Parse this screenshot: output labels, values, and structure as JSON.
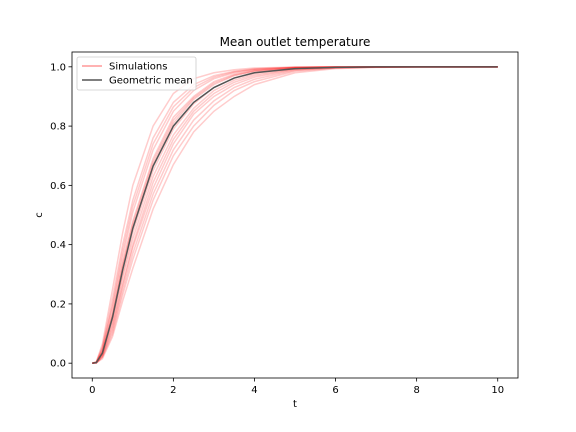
{
  "chart_data": {
    "type": "line",
    "title": "Mean outlet temperature",
    "xlabel": "t",
    "ylabel": "c",
    "xlim": [
      -0.5,
      10.5
    ],
    "ylim": [
      -0.05,
      1.05
    ],
    "xticks": [
      0,
      2,
      4,
      6,
      8,
      10
    ],
    "yticks": [
      0.0,
      0.2,
      0.4,
      0.6,
      0.8,
      1.0
    ],
    "xtick_labels": [
      "0",
      "2",
      "4",
      "6",
      "8",
      "10"
    ],
    "ytick_labels": [
      "0.0",
      "0.2",
      "0.4",
      "0.6",
      "0.8",
      "1.0"
    ],
    "legend": {
      "position": "upper-left",
      "entries": [
        {
          "label": "Simulations",
          "color": "#ff9999"
        },
        {
          "label": "Geometric mean",
          "color": "#555555"
        }
      ]
    },
    "x": [
      0,
      0.1,
      0.25,
      0.5,
      0.75,
      1,
      1.5,
      2,
      2.5,
      3,
      3.5,
      4,
      5,
      6,
      7,
      8,
      9,
      10
    ],
    "series": [
      {
        "values": [
          0,
          0.002,
          0.035,
          0.16,
          0.32,
          0.46,
          0.67,
          0.81,
          0.89,
          0.94,
          0.97,
          0.985,
          0.996,
          0.999,
          1.0,
          1.0,
          1.0,
          1.0
        ],
        "color": "#ff0000"
      },
      {
        "values": [
          0,
          0.002,
          0.03,
          0.14,
          0.29,
          0.42,
          0.63,
          0.77,
          0.86,
          0.92,
          0.955,
          0.975,
          0.993,
          0.998,
          1.0,
          1.0,
          1.0,
          1.0
        ],
        "color": "#ff0000"
      },
      {
        "values": [
          0,
          0.001,
          0.025,
          0.12,
          0.26,
          0.39,
          0.59,
          0.74,
          0.84,
          0.9,
          0.94,
          0.965,
          0.99,
          0.997,
          0.999,
          1.0,
          1.0,
          1.0
        ],
        "color": "#ff0000"
      },
      {
        "values": [
          0,
          0.001,
          0.02,
          0.1,
          0.23,
          0.35,
          0.55,
          0.7,
          0.8,
          0.87,
          0.92,
          0.95,
          0.985,
          0.996,
          0.999,
          1.0,
          1.0,
          1.0
        ],
        "color": "#ff0000"
      },
      {
        "values": [
          0,
          0.001,
          0.015,
          0.09,
          0.21,
          0.32,
          0.52,
          0.67,
          0.78,
          0.85,
          0.9,
          0.94,
          0.98,
          0.994,
          0.998,
          1.0,
          1.0,
          1.0
        ],
        "color": "#ff0000"
      },
      {
        "values": [
          0,
          0.003,
          0.045,
          0.19,
          0.36,
          0.51,
          0.72,
          0.85,
          0.92,
          0.96,
          0.98,
          0.99,
          0.998,
          1.0,
          1.0,
          1.0,
          1.0,
          1.0
        ],
        "color": "#ff0000"
      },
      {
        "values": [
          0,
          0.004,
          0.055,
          0.22,
          0.4,
          0.55,
          0.76,
          0.88,
          0.94,
          0.97,
          0.985,
          0.993,
          0.999,
          1.0,
          1.0,
          1.0,
          1.0,
          1.0
        ],
        "color": "#ff0000"
      },
      {
        "values": [
          0,
          0.005,
          0.065,
          0.25,
          0.44,
          0.6,
          0.8,
          0.91,
          0.96,
          0.98,
          0.99,
          0.996,
          0.999,
          1.0,
          1.0,
          1.0,
          1.0,
          1.0
        ],
        "color": "#ff0000"
      },
      {
        "values": [
          0,
          0.002,
          0.04,
          0.17,
          0.34,
          0.48,
          0.69,
          0.83,
          0.9,
          0.95,
          0.975,
          0.988,
          0.997,
          0.999,
          1.0,
          1.0,
          1.0,
          1.0
        ],
        "color": "#ff0000"
      },
      {
        "values": [
          0,
          0.002,
          0.033,
          0.15,
          0.3,
          0.44,
          0.65,
          0.79,
          0.875,
          0.93,
          0.962,
          0.98,
          0.995,
          0.999,
          1.0,
          1.0,
          1.0,
          1.0
        ],
        "color": "#ff0000"
      },
      {
        "values": [
          0,
          0.001,
          0.028,
          0.13,
          0.27,
          0.4,
          0.61,
          0.755,
          0.85,
          0.91,
          0.948,
          0.97,
          0.992,
          0.998,
          0.999,
          1.0,
          1.0,
          1.0
        ],
        "color": "#ff0000"
      },
      {
        "values": [
          0,
          0.003,
          0.05,
          0.2,
          0.38,
          0.53,
          0.74,
          0.865,
          0.93,
          0.965,
          0.983,
          0.992,
          0.998,
          1.0,
          1.0,
          1.0,
          1.0,
          1.0
        ],
        "color": "#ff0000"
      },
      {
        "values": [
          0,
          0.001,
          0.022,
          0.11,
          0.245,
          0.37,
          0.57,
          0.72,
          0.82,
          0.885,
          0.93,
          0.958,
          0.988,
          0.997,
          0.999,
          1.0,
          1.0,
          1.0
        ],
        "color": "#ff0000"
      },
      {
        "values": [
          0,
          0.002,
          0.038,
          0.165,
          0.33,
          0.47,
          0.68,
          0.82,
          0.895,
          0.945,
          0.972,
          0.986,
          0.996,
          0.999,
          1.0,
          1.0,
          1.0,
          1.0
        ],
        "color": "#ff0000"
      }
    ],
    "mean": {
      "values": [
        0,
        0.002,
        0.034,
        0.155,
        0.315,
        0.455,
        0.665,
        0.8,
        0.88,
        0.93,
        0.962,
        0.98,
        0.994,
        0.998,
        1.0,
        1.0,
        1.0,
        1.0
      ],
      "color": "#555555"
    }
  }
}
